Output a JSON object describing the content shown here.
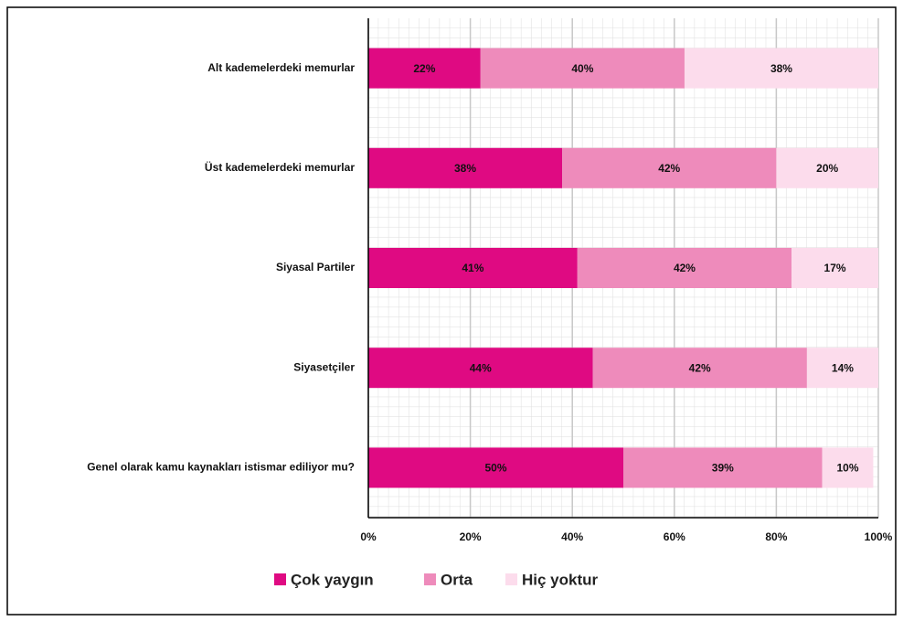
{
  "chart_data": {
    "type": "stacked-barh",
    "categories": [
      "Alt kademelerdeki memurlar",
      "Üst kademelerdeki memurlar",
      "Siyasal Partiler",
      "Siyasetçiler",
      "Genel olarak kamu kaynakları istismar ediliyor mu?"
    ],
    "series": [
      {
        "name": "Çok yaygın",
        "color": "#df0a82",
        "values": [
          22,
          38,
          41,
          44,
          50
        ],
        "value_labels": [
          "22%",
          "38%",
          "41%",
          "44%",
          "50%"
        ]
      },
      {
        "name": "Orta",
        "color": "#ee8bbb",
        "values": [
          40,
          42,
          42,
          42,
          39
        ],
        "value_labels": [
          "40%",
          "42%",
          "42%",
          "42%",
          "39%"
        ]
      },
      {
        "name": "Hiç yoktur",
        "color": "#fcdcec",
        "values": [
          38,
          20,
          17,
          14,
          10
        ],
        "value_labels": [
          "38%",
          "20%",
          "17%",
          "14%",
          "10%"
        ]
      }
    ],
    "xlim": [
      0,
      100
    ],
    "xticks": [
      {
        "value": 0,
        "label": "0%"
      },
      {
        "value": 20,
        "label": "20%"
      },
      {
        "value": 40,
        "label": "40%"
      },
      {
        "value": 60,
        "label": "60%"
      },
      {
        "value": 80,
        "label": "80%"
      },
      {
        "value": 100,
        "label": "100%"
      }
    ],
    "grid": true,
    "legend": "bottom"
  }
}
